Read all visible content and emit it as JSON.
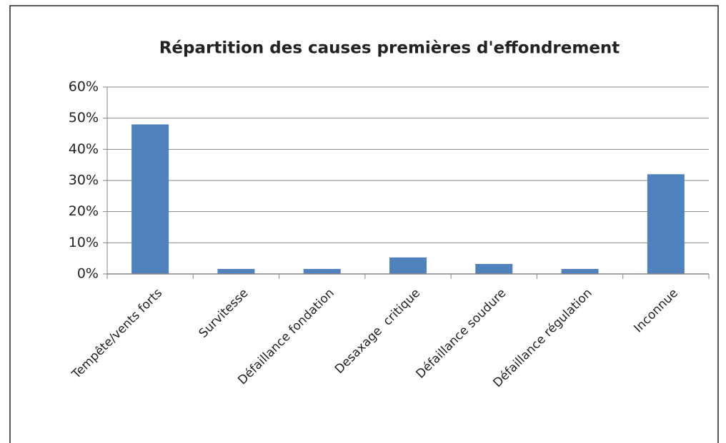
{
  "chart_data": {
    "type": "bar",
    "title": "Répartition des causes premières d'effondrement",
    "categories": [
      "Tempête/vents forts",
      "Survitesse",
      "Défaillance fondation",
      "Desaxage  critique",
      "Défaillance soudure",
      "Défaillance régulation",
      "Inconnue"
    ],
    "values": [
      48,
      1.6,
      1.6,
      5.3,
      3.2,
      1.6,
      32
    ],
    "color": "#4f81bd",
    "ylim": [
      0,
      60
    ],
    "yticks": [
      {
        "value": 0,
        "label": "0%"
      },
      {
        "value": 10,
        "label": "10%"
      },
      {
        "value": 20,
        "label": "20%"
      },
      {
        "value": 30,
        "label": "30%"
      },
      {
        "value": 40,
        "label": "40%"
      },
      {
        "value": 50,
        "label": "50%"
      },
      {
        "value": 60,
        "label": "60%"
      }
    ],
    "grid": true
  }
}
